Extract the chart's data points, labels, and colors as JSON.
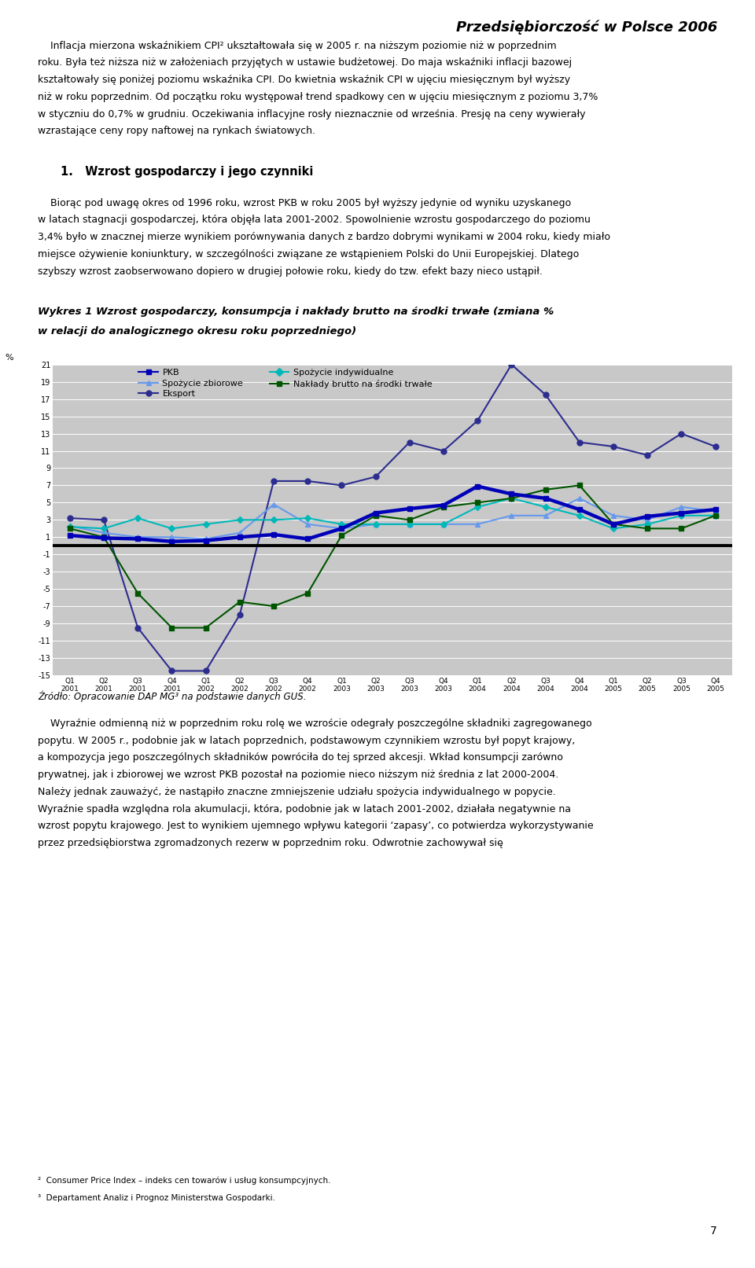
{
  "page_header": "Przedsiębiorczość w Polsce 2006",
  "chart_title": "Wykres 1 Wzrost gospodarczy, konsumpcja i nakłady brutto na środki trwałe (zmiana %\nw relacji do analogicznego okresu roku poprzedniego)",
  "ylabel": "%",
  "source": "Źródło: Opracowanie DAP MG³ na podstawie danych GUS.",
  "bg_color": "#c8c8c8",
  "ylim": [
    -15,
    21
  ],
  "yticks": [
    -15,
    -13,
    -11,
    -9,
    -7,
    -5,
    -3,
    -1,
    1,
    3,
    5,
    7,
    9,
    11,
    13,
    15,
    17,
    19,
    21
  ],
  "x_labels": [
    "Q1\n2001",
    "Q2\n2001",
    "Q3\n2001",
    "Q4\n2001",
    "Q1\n2002",
    "Q2\n2002",
    "Q3\n2002",
    "Q4\n2002",
    "Q1\n2003",
    "Q2\n2003",
    "Q3\n2003",
    "Q4\n2003",
    "Q1\n2004",
    "Q2\n2004",
    "Q3\n2004",
    "Q4\n2004",
    "Q1\n2005",
    "Q2\n2005",
    "Q3\n2005",
    "Q4\n2005"
  ],
  "series": [
    {
      "name": "PKB",
      "color": "#0000b8",
      "linewidth": 3.2,
      "marker": "s",
      "markersize": 5,
      "zorder": 5,
      "values": [
        1.2,
        0.9,
        0.8,
        0.5,
        0.6,
        1.0,
        1.3,
        0.8,
        2.0,
        3.8,
        4.3,
        4.7,
        6.9,
        6.0,
        5.5,
        4.2,
        2.5,
        3.4,
        3.8,
        4.2
      ]
    },
    {
      "name": "Spożycie zbiorowe",
      "color": "#6699ee",
      "linewidth": 1.5,
      "marker": "^",
      "markersize": 5,
      "zorder": 4,
      "values": [
        2.3,
        1.5,
        1.0,
        1.0,
        0.8,
        1.5,
        4.8,
        2.5,
        2.0,
        2.5,
        2.5,
        2.5,
        2.5,
        3.5,
        3.5,
        5.5,
        3.5,
        3.0,
        4.5,
        4.0
      ]
    },
    {
      "name": "Eksport",
      "color": "#2d2d8f",
      "linewidth": 1.5,
      "marker": "o",
      "markersize": 5,
      "zorder": 3,
      "values": [
        3.2,
        3.0,
        -9.5,
        -14.5,
        -14.5,
        -8.0,
        7.5,
        7.5,
        7.0,
        8.0,
        12.0,
        11.0,
        14.5,
        21.0,
        17.5,
        12.0,
        11.5,
        10.5,
        13.0,
        11.5
      ]
    },
    {
      "name": "Spożycie indywidualne",
      "color": "#00b8b8",
      "linewidth": 1.5,
      "marker": "D",
      "markersize": 4,
      "zorder": 4,
      "values": [
        2.2,
        2.0,
        3.2,
        2.0,
        2.5,
        3.0,
        3.0,
        3.2,
        2.5,
        2.5,
        2.5,
        2.5,
        4.5,
        5.5,
        4.5,
        3.5,
        2.0,
        2.5,
        3.5,
        3.5
      ]
    },
    {
      "name": "Nakłady brutto na środki trwałe",
      "color": "#005500",
      "linewidth": 1.5,
      "marker": "s",
      "markersize": 4,
      "zorder": 4,
      "values": [
        2.0,
        1.0,
        -5.5,
        -9.5,
        -9.5,
        -6.5,
        -7.0,
        -5.5,
        1.2,
        3.5,
        3.0,
        4.5,
        5.0,
        5.5,
        6.5,
        7.0,
        2.5,
        2.0,
        2.0,
        3.5
      ]
    }
  ],
  "text_top": [
    "    Inflacja mierzona wskaźnikiem CPI² ukształtowała się w 2005 r. na niższym poziomie niż w poprzednim",
    "roku. Była też niższa niż w założeniach przyjętych w ustawie budżetowej. Do maja wskaźniki inflacji bazowej",
    "kształtowały się poniżej poziomu wskaźnika CPI. Do kwietnia wskaźnik CPI w ujęciu miesięcznym był wyższy",
    "niż w roku poprzednim. Od początku roku występował trend spadkowy cen w ujęciu miesięcznym z poziomu 3,7%",
    "w styczniu do 0,7% w grudniu. Oczekiwania inflacyjne rosły nieznacznie od września. Presję na ceny wywierały",
    "wzrastające ceny ropy naftowej na rynkach światowych."
  ],
  "section_heading": "1.   Wzrost gospodarczy i jego czynniki",
  "text_body1": [
    "    Biorąc pod uwagę okres od 1996 roku, wzrost PKB w roku 2005 był wyższy jedynie od wyniku uzyskanego",
    "w latach stagnacji gospodarczej, która objęła lata 2001-2002. Spowolnienie wzrostu gospodarczego do poziomu",
    "3,4% było w znacznej mierze wynikiem porównywania danych z bardzo dobrymi wynikami w 2004 roku, kiedy miało",
    "miejsce ożywienie koniunktury, w szczególności związane ze wstąpieniem Polski do Unii Europejskiej. Dlatego",
    "szybszy wzrost zaobserwowano dopiero w drugiej połowie roku, kiedy do tzw. efekt bazy nieco ustąpił."
  ],
  "text_bottom": [
    "    Wyraźnie odmienną niż w poprzednim roku rolę we wzroście odegrały poszczególne składniki zagregowanego",
    "popytu. W 2005 r., podobnie jak w latach poprzednich, podstawowym czynnikiem wzrostu był popyt krajowy,",
    "a kompozycja jego poszczególnych składników powróciła do tej sprzed akcesji. Wkład konsumpcji zarówno",
    "prywatnej, jak i zbiorowej we wzrost PKB pozostał na poziomie nieco niższym niż średnia z lat 2000-2004.",
    "Należy jednak zauważyć, że nastąpiło znaczne zmniejszenie udziału spożycia indywidualnego w popycie.",
    "Wyraźnie spadła względna rola akumulacji, która, podobnie jak w latach 2001-2002, działała negatywnie na",
    "wzrost popytu krajowego. Jest to wynikiem ujemnego wpływu kategorii ‘zapasy’, co potwierdza wykorzystywanie",
    "przez przedsiębiorstwa zgromadzonych rezerw w poprzednim roku. Odwrotnie zachowywał się"
  ],
  "footnote1": "²  Consumer Price Index – indeks cen towarów i usług konsumpcyjnych.",
  "footnote2": "³  Departament Analiz i Prognoz Ministerstwa Gospodarki.",
  "page_number": "7"
}
